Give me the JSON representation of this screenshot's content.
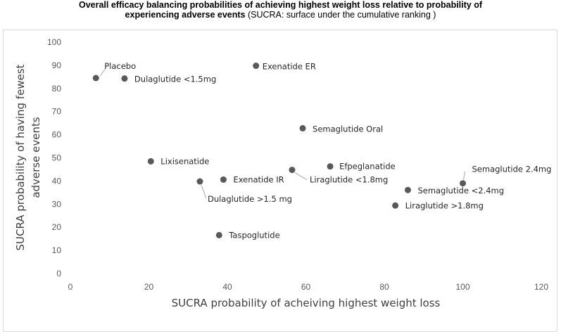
{
  "title": {
    "line1": "Overall efficacy balancing probabilities of achieving highest weight loss relative to probability of",
    "line2_bold": "experiencing adverse events",
    "line2_normal": " (SUCRA: surface under the cumulative ranking )"
  },
  "chart_data": {
    "type": "scatter",
    "title": "Overall efficacy balancing probabilities of achieving highest weight loss relative to probability of experiencing adverse events (SUCRA: surface under the cumulative ranking )",
    "xlabel": "SUCRA probability of acheiving highest weight loss",
    "ylabel": "SUCRA probability of having fewest adverse events",
    "ylabel_lines": [
      "SUCRA probability of having fewest",
      "adverse events"
    ],
    "xlim": [
      0,
      120
    ],
    "ylim": [
      0,
      100
    ],
    "xticks": [
      "0",
      "20",
      "40",
      "60",
      "80",
      "100",
      "120"
    ],
    "yticks": [
      "0",
      "10",
      "20",
      "30",
      "40",
      "50",
      "60",
      "70",
      "80",
      "90",
      "100"
    ],
    "grid": false,
    "marker_color": "#595959",
    "points": [
      {
        "name": "Placebo",
        "x": 6.5,
        "y": 84.5
      },
      {
        "name": "Dulaglutide <1.5mg",
        "x": 13.8,
        "y": 84.3
      },
      {
        "name": "Exenatide ER",
        "x": 47.3,
        "y": 89.8
      },
      {
        "name": "Semaglutide Oral",
        "x": 59.2,
        "y": 62.8
      },
      {
        "name": "Lixisenatide",
        "x": 20.5,
        "y": 48.5
      },
      {
        "name": "Efpeglanatide",
        "x": 66.2,
        "y": 46.3
      },
      {
        "name": "Liraglutide <1.8mg",
        "x": 56.5,
        "y": 44.8
      },
      {
        "name": "Semaglutide 2.4mg",
        "x": 100.0,
        "y": 39.0
      },
      {
        "name": "Exenatide IR",
        "x": 39.0,
        "y": 40.6
      },
      {
        "name": "Dulaglutide >1.5 mg",
        "x": 33.0,
        "y": 39.8
      },
      {
        "name": "Semaglutide <2.4mg",
        "x": 86.0,
        "y": 36.1
      },
      {
        "name": "Liraglutide >1.8mg",
        "x": 82.8,
        "y": 29.4
      },
      {
        "name": "Taspoglutide",
        "x": 37.9,
        "y": 16.6
      }
    ]
  }
}
